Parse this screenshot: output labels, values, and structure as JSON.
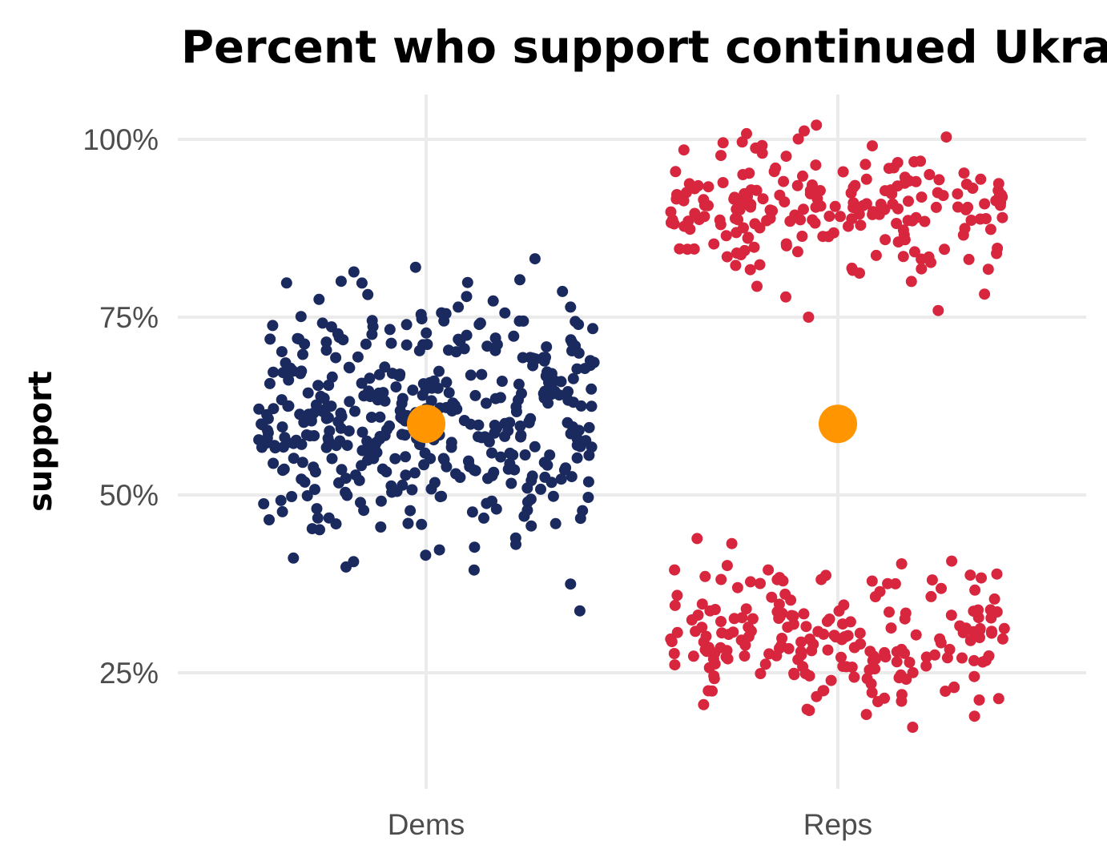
{
  "chart_data": {
    "type": "scatter",
    "title": "Percent who support continued Ukraine aid",
    "xlabel": "",
    "ylabel": "support",
    "categories": [
      "Dems",
      "Reps"
    ],
    "y_ticks": [
      {
        "value": 0.25,
        "label": "25%"
      },
      {
        "value": 0.5,
        "label": "50%"
      },
      {
        "value": 0.75,
        "label": "75%"
      },
      {
        "value": 1.0,
        "label": "100%"
      }
    ],
    "ylim": [
      0.1,
      1.05
    ],
    "grid": true,
    "legend": "none",
    "series": [
      {
        "category": "Dems",
        "color": "#1a2a5e",
        "points": [
          {
            "n": 420,
            "mean": 0.6,
            "sd": 0.09,
            "min": 0.32,
            "max": 0.86,
            "jitter": 0.4
          }
        ]
      },
      {
        "category": "Reps",
        "color": "#d7263d",
        "points": [
          {
            "n": 210,
            "mean": 0.895,
            "sd": 0.045,
            "min": 0.75,
            "max": 1.02,
            "jitter": 0.4
          },
          {
            "n": 210,
            "mean": 0.3,
            "sd": 0.05,
            "min": 0.13,
            "max": 0.46,
            "jitter": 0.4
          }
        ]
      }
    ],
    "means": [
      {
        "category": "Dems",
        "value": 0.6,
        "color": "#ff9500"
      },
      {
        "category": "Reps",
        "value": 0.6,
        "color": "#ff9500"
      }
    ]
  }
}
